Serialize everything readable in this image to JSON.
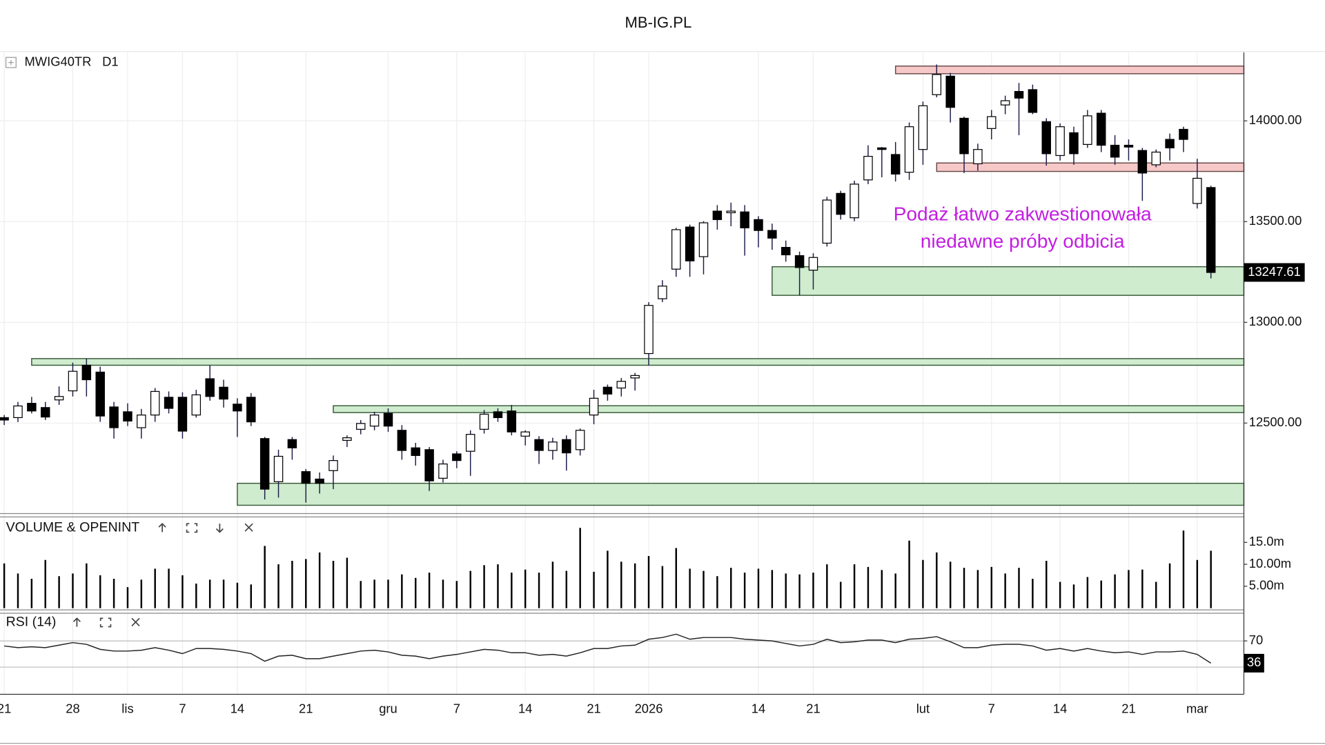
{
  "header": "MB-IG.PL",
  "chart_data": [
    {
      "type": "candlestick",
      "title": "MWIG40TR",
      "timeframe": "D1",
      "grid": true,
      "up_color": "#ffffff",
      "down_color": "#000000",
      "wick_color": "#1c1c4a",
      "categories": [
        "21",
        null,
        null,
        null,
        null,
        "28",
        null,
        null,
        null,
        "lis",
        null,
        null,
        null,
        "7",
        null,
        null,
        null,
        "14",
        null,
        null,
        null,
        null,
        "21",
        null,
        null,
        null,
        null,
        null,
        "gru",
        null,
        null,
        null,
        null,
        "7",
        null,
        null,
        null,
        null,
        "14",
        null,
        null,
        null,
        null,
        "21",
        null,
        null,
        null,
        "2026",
        null,
        null,
        null,
        null,
        null,
        null,
        null,
        "14",
        null,
        null,
        null,
        "21",
        null,
        null,
        null,
        null,
        null,
        null,
        null,
        "lut",
        null,
        null,
        null,
        null,
        "7",
        null,
        null,
        null,
        null,
        "14",
        null,
        null,
        null,
        null,
        "21",
        null,
        null,
        null,
        null,
        "mar",
        null
      ],
      "open": [
        12527,
        12527,
        12598,
        12577,
        12615,
        12660,
        12787,
        12753,
        12580,
        12556,
        12477,
        12540,
        12628,
        12628,
        12540,
        12720,
        12678,
        12594,
        12628,
        12423,
        12209,
        12418,
        12259,
        12222,
        12264,
        12414,
        12469,
        12485,
        12548,
        12464,
        12377,
        12368,
        12226,
        12347,
        12360,
        12469,
        12556,
        12560,
        12435,
        12418,
        12364,
        12418,
        12368,
        12540,
        12678,
        12674,
        12724,
        12845,
        13117,
        13264,
        13473,
        13326,
        13552,
        13544,
        13548,
        13510,
        13456,
        13372,
        13331,
        13259,
        13393,
        13640,
        13519,
        13707,
        13866,
        13833,
        13745,
        13858,
        14130,
        14222,
        14013,
        13787,
        13962,
        14079,
        14146,
        14155,
        13996,
        13828,
        13941,
        13883,
        14038,
        13879,
        13879,
        13853,
        13782,
        13908,
        13958,
        13590,
        13669
      ],
      "high": [
        12540,
        12605,
        12630,
        12605,
        12682,
        12800,
        12820,
        12780,
        12605,
        12598,
        12570,
        12674,
        12657,
        12653,
        12665,
        12787,
        12715,
        12623,
        12649,
        12431,
        12368,
        12431,
        12272,
        12255,
        12339,
        12439,
        12515,
        12556,
        12573,
        12490,
        12402,
        12381,
        12318,
        12360,
        12464,
        12565,
        12573,
        12590,
        12464,
        12435,
        12427,
        12439,
        12473,
        12665,
        12691,
        12724,
        12749,
        13100,
        13209,
        13469,
        13485,
        13502,
        13582,
        13594,
        13582,
        13527,
        13490,
        13406,
        13351,
        13343,
        13623,
        13653,
        13703,
        13879,
        13870,
        13895,
        13992,
        14096,
        14280,
        14238,
        14021,
        13887,
        14054,
        14125,
        14188,
        14180,
        14013,
        13987,
        13971,
        14054,
        14054,
        13929,
        13908,
        13866,
        13858,
        13937,
        13971,
        13812,
        13678
      ],
      "low": [
        12490,
        12505,
        12548,
        12515,
        12590,
        12632,
        12632,
        12506,
        12423,
        12485,
        12423,
        12506,
        12548,
        12423,
        12527,
        12611,
        12577,
        12431,
        12485,
        12121,
        12130,
        12318,
        12105,
        12150,
        12172,
        12381,
        12444,
        12464,
        12456,
        12318,
        12289,
        12163,
        12205,
        12276,
        12238,
        12448,
        12506,
        12439,
        12389,
        12297,
        12318,
        12264,
        12339,
        12494,
        12611,
        12632,
        12661,
        12787,
        13100,
        13226,
        13226,
        13238,
        13460,
        13477,
        13331,
        13372,
        13360,
        13301,
        13134,
        13163,
        13376,
        13510,
        13502,
        13686,
        13720,
        13699,
        13707,
        13782,
        14117,
        13992,
        13741,
        13753,
        13908,
        14033,
        13929,
        14033,
        13778,
        13803,
        13782,
        13866,
        13845,
        13782,
        13803,
        13603,
        13770,
        13803,
        13845,
        13565,
        13218
      ],
      "close": [
        12515,
        12585,
        12560,
        12530,
        12632,
        12757,
        12715,
        12535,
        12477,
        12510,
        12540,
        12657,
        12573,
        12460,
        12640,
        12632,
        12619,
        12560,
        12506,
        12172,
        12335,
        12377,
        12201,
        12201,
        12314,
        12427,
        12498,
        12540,
        12485,
        12364,
        12339,
        12213,
        12297,
        12314,
        12444,
        12544,
        12527,
        12456,
        12456,
        12364,
        12406,
        12352,
        12464,
        12623,
        12644,
        12707,
        12736,
        13084,
        13180,
        13460,
        13305,
        13494,
        13510,
        13552,
        13469,
        13456,
        13418,
        13335,
        13272,
        13322,
        13607,
        13536,
        13686,
        13824,
        13858,
        13736,
        13971,
        14075,
        14230,
        14067,
        13837,
        13858,
        14021,
        14100,
        14113,
        14042,
        13837,
        13971,
        13837,
        14025,
        13879,
        13820,
        13870,
        13741,
        13845,
        13866,
        13908,
        13715,
        13247.61
      ],
      "ylim": [
        12055,
        14340
      ],
      "yticks": [
        {
          "value": 12500,
          "label": "12500.00"
        },
        {
          "value": 13000,
          "label": "13000.00"
        },
        {
          "value": 13500,
          "label": "13500.00"
        },
        {
          "value": 14000,
          "label": "14000.00"
        }
      ],
      "zones": [
        {
          "from": 65,
          "low": 14234,
          "high": 14272,
          "fill": "#f7c8c8",
          "stroke": "#6a4a4a"
        },
        {
          "from": 68,
          "low": 13749,
          "high": 13791,
          "fill": "#f7c8c8",
          "stroke": "#6a4a4a"
        },
        {
          "from": 56,
          "low": 13134,
          "high": 13276,
          "fill": "#cfecce",
          "stroke": "#3a5a3a"
        },
        {
          "from": 2,
          "low": 12787,
          "high": 12820,
          "fill": "#cfecce",
          "stroke": "#3a5a3a"
        },
        {
          "from": 24,
          "low": 12552,
          "high": 12586,
          "fill": "#cfecce",
          "stroke": "#3a5a3a"
        },
        {
          "from": 17,
          "low": 12092,
          "high": 12201,
          "fill": "#cfecce",
          "stroke": "#3a5a3a"
        }
      ],
      "annotation": {
        "lines": [
          "Podaż łatwo zakwestionowała",
          "niedawne próby odbicia"
        ],
        "color": "#c21ee0"
      }
    },
    {
      "type": "bar",
      "title": "VOLUME & OPENINT",
      "color": "#000000",
      "values": [
        10.2,
        7.9,
        6.7,
        11,
        7.3,
        7.9,
        10.2,
        7.5,
        6.7,
        4.8,
        6.5,
        9,
        9,
        7.5,
        5.6,
        6.5,
        6.5,
        5.8,
        5.4,
        14.2,
        10,
        10.8,
        11.2,
        12.7,
        10.8,
        11.5,
        6.2,
        6.5,
        6.5,
        7.7,
        6.9,
        8.1,
        6.5,
        6.2,
        8.5,
        9.8,
        10,
        8.1,
        8.8,
        8.1,
        10.6,
        8.5,
        18.3,
        8.3,
        13.1,
        10.6,
        10.2,
        11.9,
        9.6,
        13.7,
        9,
        8.5,
        7.3,
        9.2,
        8.1,
        9,
        8.7,
        7.9,
        7.7,
        8.1,
        10,
        6,
        10,
        9.4,
        8.7,
        7.9,
        15.4,
        11,
        12.7,
        10.6,
        9.2,
        8.7,
        9.4,
        7.9,
        9.2,
        6.7,
        10.8,
        6,
        5.4,
        7.1,
        6.3,
        7.7,
        8.7,
        8.8,
        6,
        10.2,
        17.7,
        11,
        13.1
      ],
      "ylim": [
        0,
        20.8
      ],
      "yticks": [
        {
          "value": 5,
          "label": "5.00m"
        },
        {
          "value": 10,
          "label": "10.00m"
        },
        {
          "value": 15,
          "label": "15.0m"
        }
      ]
    },
    {
      "type": "line",
      "title": "RSI (14)",
      "color": "#222222",
      "level_color": "#bbbbbb",
      "values": [
        62.3,
        59.7,
        61,
        59.7,
        63.5,
        67.4,
        64.8,
        57.1,
        54.5,
        54.5,
        55.8,
        59.7,
        55.8,
        50.6,
        58.4,
        58.4,
        57.1,
        54.5,
        50.6,
        39,
        46.8,
        48.1,
        42.9,
        42.9,
        46.8,
        50.6,
        54.5,
        55.8,
        53.2,
        48.1,
        46.8,
        42.9,
        46.8,
        49.4,
        53.2,
        57.1,
        55.8,
        51.9,
        51.9,
        48.1,
        49.4,
        46.8,
        51.9,
        58.4,
        58.4,
        62.3,
        63.5,
        72.6,
        75.2,
        80.3,
        72.6,
        75.2,
        75.2,
        75.2,
        72.6,
        71.3,
        70,
        66.1,
        62.3,
        64.8,
        72.6,
        67.4,
        68.7,
        71.3,
        71.3,
        67.4,
        72.6,
        73.9,
        76.5,
        68.7,
        59.7,
        59.7,
        63.5,
        64.8,
        64.8,
        62.3,
        55.8,
        58.4,
        54.5,
        58.4,
        54.5,
        51.9,
        53.2,
        49.4,
        53.2,
        53.2,
        54.5,
        49.4,
        36
      ],
      "ylim": [
        -9,
        111
      ],
      "yticks": [
        70
      ],
      "levels": [
        70,
        30
      ]
    }
  ]
}
